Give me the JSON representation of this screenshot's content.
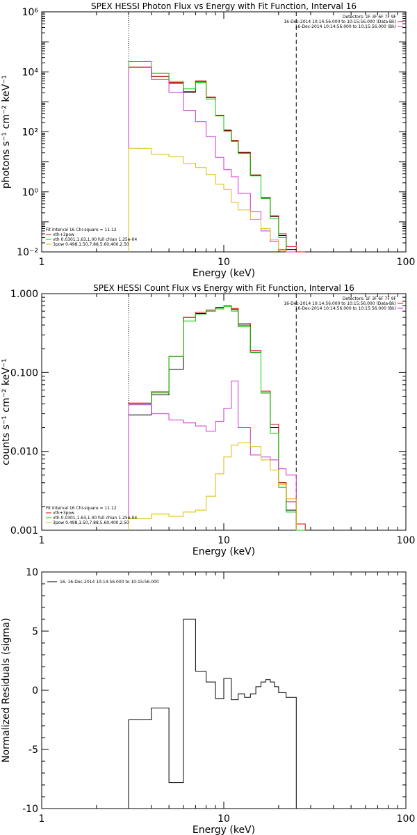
{
  "chart_data": [
    {
      "type": "line",
      "title": "SPEX HESSI Photon Flux vs Energy with Fit Function, Interval 16",
      "xlabel": "Energy (keV)",
      "ylabel": "photons s⁻¹ cm⁻² keV⁻¹",
      "xscale": "log",
      "yscale": "log",
      "xlim": [
        1,
        100
      ],
      "ylim": [
        0.01,
        1000000
      ],
      "xticks": [
        {
          "v": 1,
          "label": "1"
        },
        {
          "v": 10,
          "label": "10"
        },
        {
          "v": 100,
          "label": "100"
        }
      ],
      "yticks": [
        {
          "v": 0.01,
          "label": "10⁻²"
        },
        {
          "v": 1,
          "label": "10⁰"
        },
        {
          "v": 100,
          "label": "10²"
        },
        {
          "v": 10000,
          "label": "10⁴"
        },
        {
          "v": 1000000,
          "label": "10⁶"
        }
      ],
      "vlines": [
        {
          "x": 3,
          "style": "dotted"
        },
        {
          "x": 25,
          "style": "dashed"
        }
      ],
      "header_lines": [
        "Detectors: 1F 3F 6F 7F 9F",
        "16-Dec-2014 10:14:56.000 to 10:15:56.000 (Data-Bk)",
        "16-Dec-2014 10:14:56.000 to 10:15:56.000 (Bk)"
      ],
      "header_colors": [
        "#000000",
        "#dd0000",
        "#cc33cc"
      ],
      "fit_label": "Fit Interval 16    Chi-square = 11.12",
      "legend": [
        {
          "label": "vth+3pow",
          "color": "#dd0000"
        },
        {
          "label": "vth 0.0301,1.63,1.00  full chian 1.25e-04",
          "color": "#00cc00"
        },
        {
          "label": "3pow 0.498,1.50,7.88,5.60,400,2.50",
          "color": "#ddbb00"
        }
      ],
      "edges": [
        3,
        4,
        5,
        6,
        7,
        8,
        9,
        10,
        11,
        12,
        14,
        16,
        18,
        20,
        22,
        25,
        28
      ],
      "series": [
        {
          "color": "#000000",
          "values": [
            14000,
            7000,
            4200,
            2100,
            4800,
            1400,
            350,
            110,
            50,
            20,
            3.5,
            0.6,
            0.15,
            0.035,
            0.012,
            null
          ]
        },
        {
          "color": "#dd0000",
          "values": [
            14500,
            7200,
            4400,
            2200,
            5000,
            1450,
            360,
            115,
            52,
            21,
            3.7,
            0.65,
            0.16,
            0.04,
            0.015,
            0.008
          ]
        },
        {
          "color": "#00cc00",
          "values": [
            22000,
            9000,
            4800,
            2700,
            4400,
            1250,
            340,
            105,
            48,
            19,
            3.4,
            0.6,
            0.13,
            0.03,
            0.008,
            null
          ]
        },
        {
          "color": "#cc33cc",
          "values": [
            14000,
            5500,
            2100,
            520,
            220,
            70,
            14,
            5.5,
            3.2,
            0.9,
            0.22,
            0.05,
            0.022,
            0.012,
            0.009,
            null
          ]
        },
        {
          "color": "#ddbb00",
          "values": [
            28,
            18,
            15,
            9,
            6.5,
            3.8,
            1.8,
            1.2,
            0.45,
            0.25,
            0.12,
            0.06,
            0.025,
            0.011,
            null,
            null
          ]
        }
      ]
    },
    {
      "type": "line",
      "title": "SPEX HESSI Count Flux vs Energy with Fit Function, Interval 16",
      "xlabel": "Energy (keV)",
      "ylabel": "counts s⁻¹ cm⁻² keV⁻¹",
      "xscale": "log",
      "yscale": "log",
      "xlim": [
        1,
        100
      ],
      "ylim": [
        0.001,
        1.0
      ],
      "xticks": [
        {
          "v": 1,
          "label": "1"
        },
        {
          "v": 10,
          "label": "10"
        },
        {
          "v": 100,
          "label": "100"
        }
      ],
      "yticks": [
        {
          "v": 0.001,
          "label": "0.001"
        },
        {
          "v": 0.01,
          "label": "0.010"
        },
        {
          "v": 0.1,
          "label": "0.100"
        },
        {
          "v": 1,
          "label": "1.000"
        }
      ],
      "vlines": [
        {
          "x": 3,
          "style": "dotted"
        },
        {
          "x": 25,
          "style": "dashed"
        }
      ],
      "header_lines": [
        "Detectors: 1F 3F 6F 7F 9F",
        "16-Dec-2014 10:14:56.000 to 10:15:56.000 (Data-Bk)",
        "16-Dec-2014 10:14:56.000 to 10:15:56.000 (Bk)"
      ],
      "header_colors": [
        "#000000",
        "#dd0000",
        "#cc33cc"
      ],
      "fit_label": "Fit Interval 16    Chi-square = 11.12",
      "legend": [
        {
          "label": "vth+3pow",
          "color": "#dd0000"
        },
        {
          "label": "vth 0.0301,1.63,1.00  full chian 1.25e-04",
          "color": "#00cc00"
        },
        {
          "label": "3pow 0.498,1.50,7.88,5.60,400,2.50",
          "color": "#ddbb00"
        }
      ],
      "edges": [
        3,
        4,
        5,
        6,
        7,
        8,
        9,
        10,
        11,
        12,
        14,
        16,
        18,
        20,
        22,
        25,
        28
      ],
      "series": [
        {
          "color": "#000000",
          "values": [
            0.029,
            0.052,
            0.11,
            0.5,
            0.56,
            0.6,
            0.66,
            0.7,
            0.63,
            0.4,
            0.18,
            0.055,
            0.02,
            0.004,
            0.0018,
            null
          ]
        },
        {
          "color": "#dd0000",
          "values": [
            0.041,
            0.057,
            0.16,
            0.5,
            0.58,
            0.62,
            0.67,
            0.7,
            0.65,
            0.42,
            0.19,
            0.058,
            0.022,
            0.004,
            0.0023,
            0.0012
          ]
        },
        {
          "color": "#00cc00",
          "values": [
            0.04,
            0.055,
            0.16,
            0.45,
            0.55,
            0.6,
            0.64,
            0.69,
            0.6,
            0.38,
            0.18,
            0.055,
            0.017,
            0.0035,
            0.0017,
            0.001
          ]
        },
        {
          "color": "#cc33cc",
          "values": [
            0.039,
            0.03,
            0.025,
            0.023,
            0.021,
            0.018,
            0.024,
            0.035,
            0.078,
            0.02,
            0.009,
            0.0085,
            0.0078,
            0.006,
            0.005,
            null
          ]
        },
        {
          "color": "#ddbb00",
          "values": [
            0.0014,
            0.0016,
            0.0015,
            0.0017,
            0.0018,
            0.0027,
            0.0052,
            0.0085,
            0.012,
            0.0128,
            0.0115,
            0.0078,
            0.0058,
            0.0038,
            0.0025,
            null
          ]
        }
      ]
    },
    {
      "type": "line",
      "title": "",
      "xlabel": "Energy (keV)",
      "ylabel": "Normalized Residuals (sigma)",
      "xscale": "log",
      "yscale": "linear",
      "xlim": [
        1,
        100
      ],
      "ylim": [
        -10,
        10
      ],
      "xticks": [
        {
          "v": 1,
          "label": "1"
        },
        {
          "v": 10,
          "label": "10"
        },
        {
          "v": 100,
          "label": "100"
        }
      ],
      "yticks": [
        {
          "v": -10,
          "label": "-10"
        },
        {
          "v": -5,
          "label": "-5"
        },
        {
          "v": 0,
          "label": "0"
        },
        {
          "v": 5,
          "label": "5"
        },
        {
          "v": 10,
          "label": "10"
        }
      ],
      "legend": [
        {
          "label": "16. 16-Dec-2014 10:14:56.000 to 10:15:56.000",
          "color": "#000000"
        }
      ],
      "edges": [
        3,
        4,
        5,
        6,
        7,
        8,
        9,
        10,
        11,
        12,
        13,
        14,
        15,
        16,
        17,
        18,
        19,
        20,
        22,
        25
      ],
      "series": [
        {
          "color": "#000000",
          "values": [
            -2.5,
            -1.5,
            -7.8,
            6,
            1.6,
            0.7,
            -0.7,
            1,
            -0.8,
            -0.3,
            -0.6,
            -0.3,
            0.3,
            0.7,
            0.9,
            0.7,
            0.3,
            -0.2,
            -0.6
          ]
        }
      ]
    }
  ]
}
